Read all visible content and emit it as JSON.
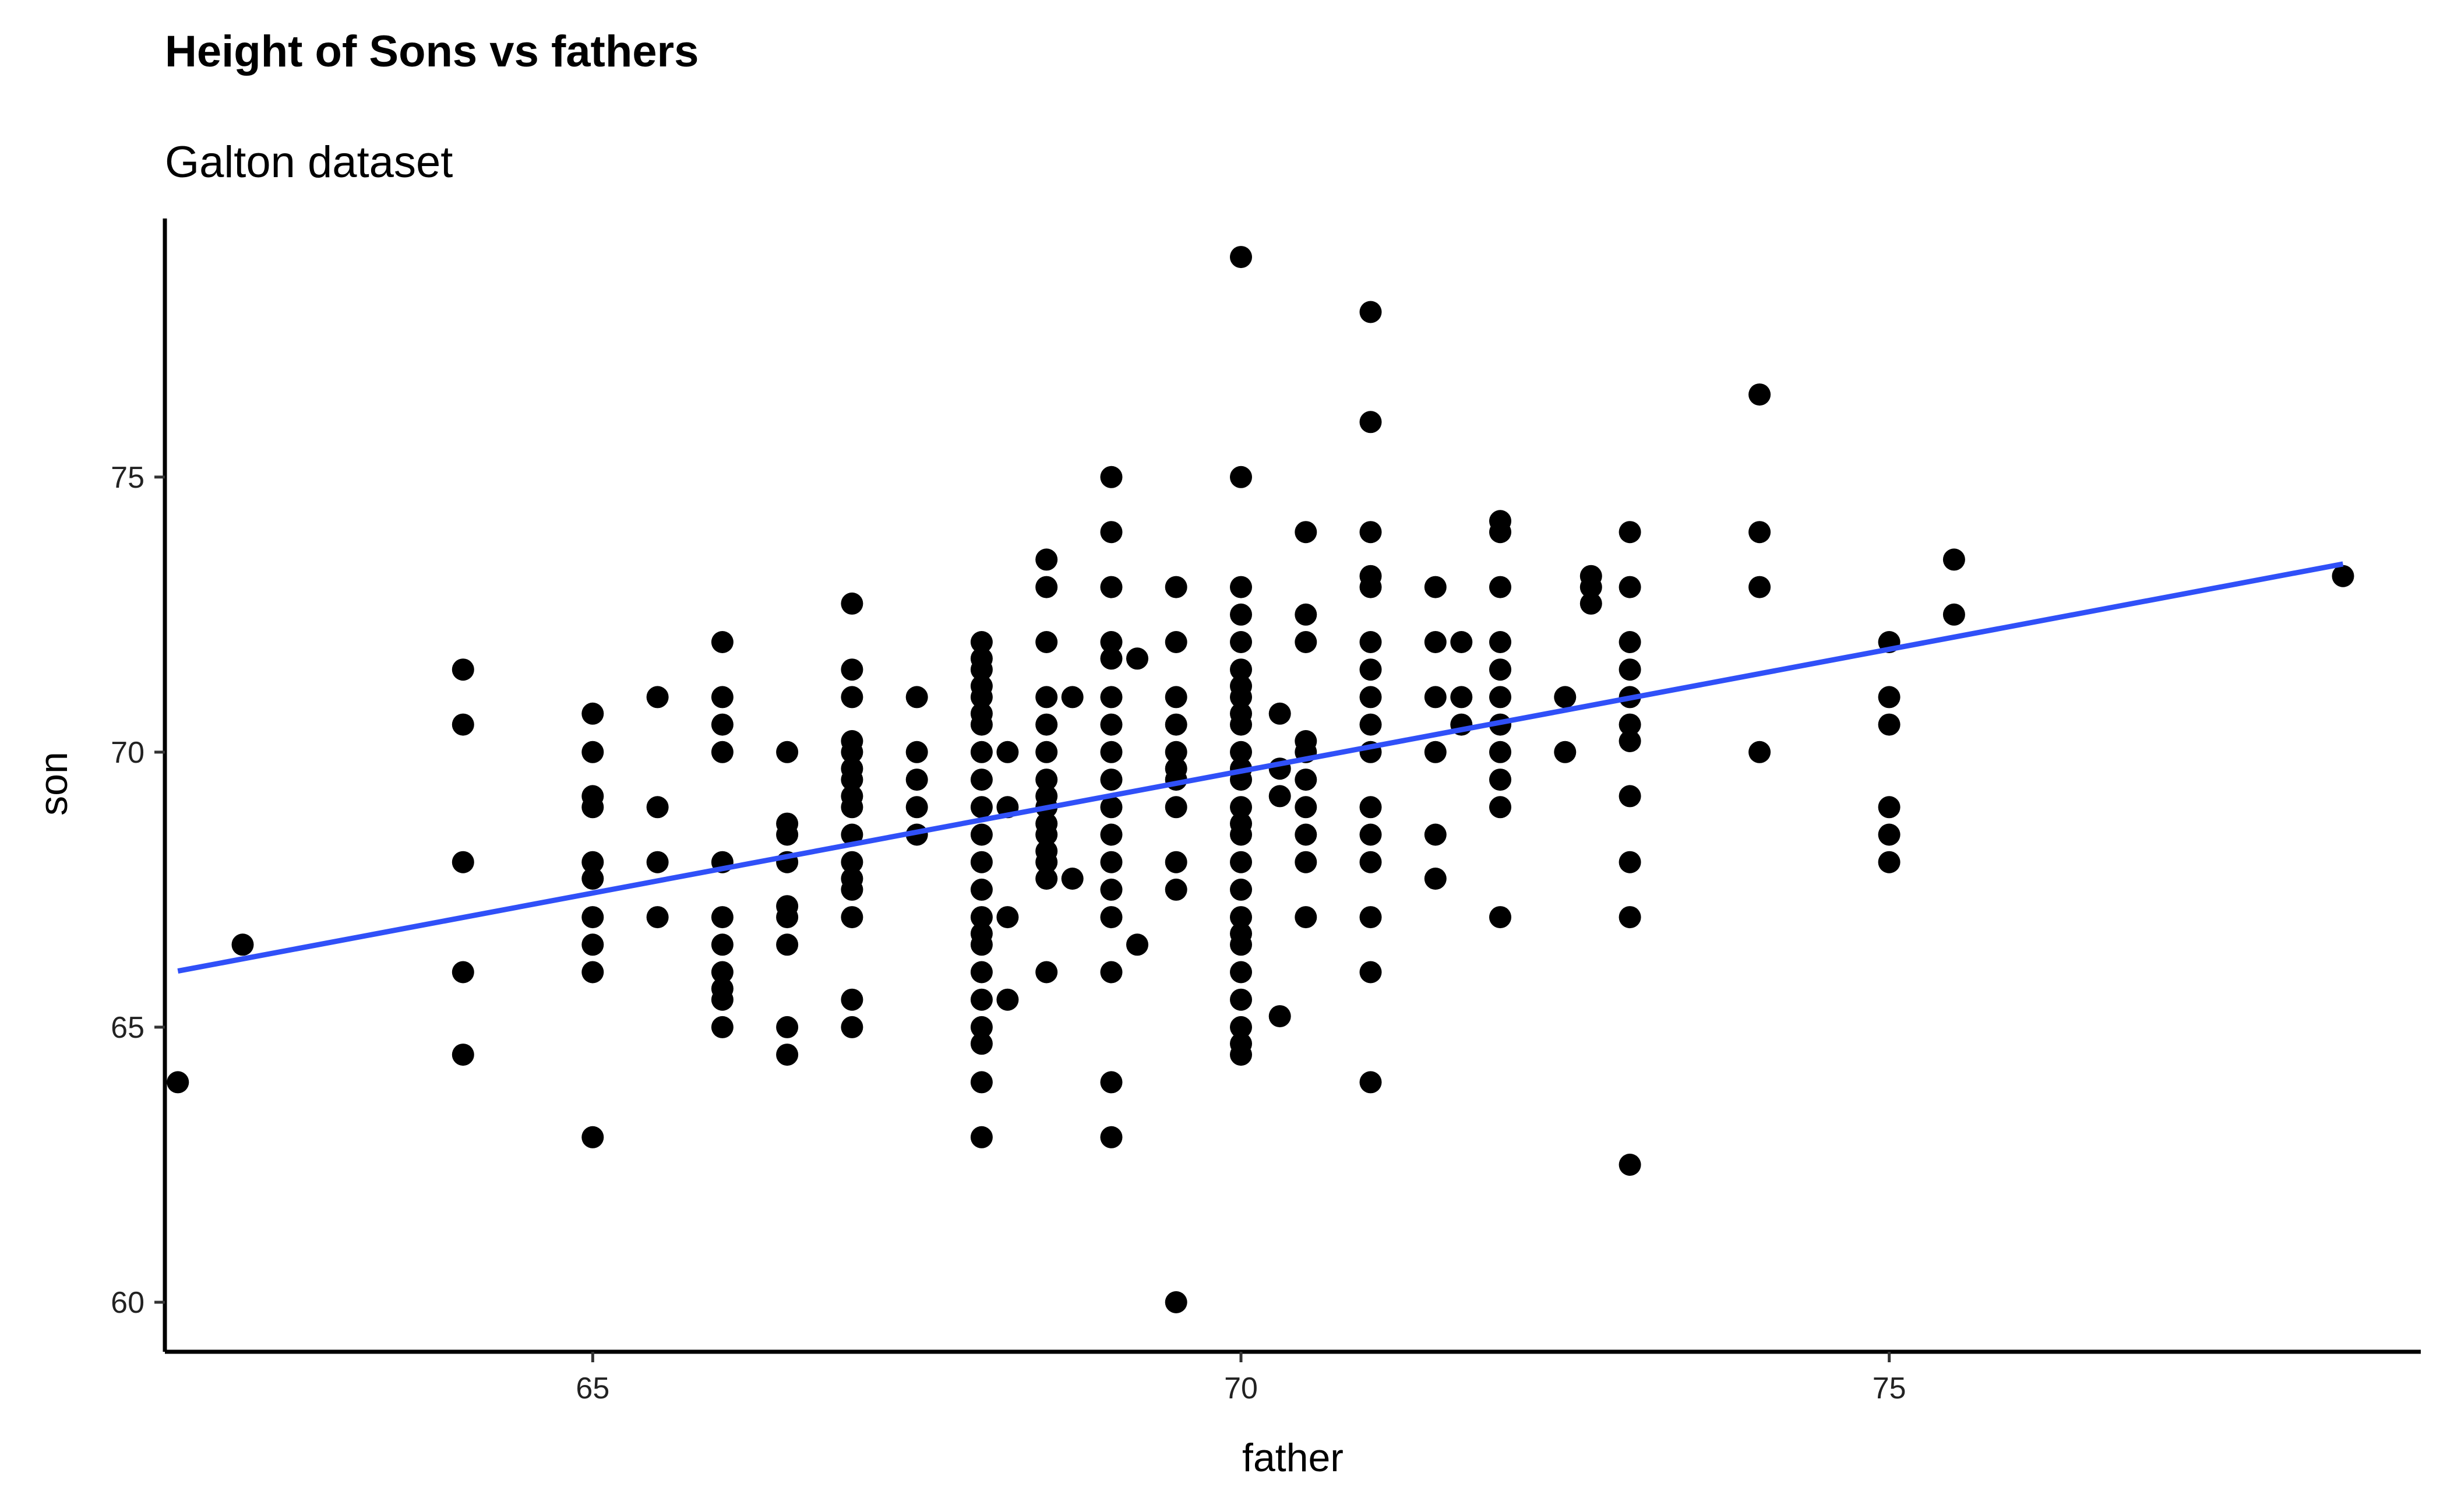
{
  "chart_data": {
    "type": "scatter",
    "title": "Height of Sons vs fathers",
    "subtitle": "Galton dataset",
    "xlabel": "father",
    "ylabel": "son",
    "xlim": [
      61.7,
      79.1
    ],
    "ylim": [
      59.1,
      79.7
    ],
    "x_ticks": [
      65,
      70,
      75
    ],
    "y_ticks": [
      60,
      65,
      70,
      75
    ],
    "grid": false,
    "colors": {
      "points": "#000000",
      "line": "#3050f8",
      "axis": "#000000"
    },
    "series": [
      {
        "type": "scatter",
        "points": [
          [
            61.8,
            64.0
          ],
          [
            62.3,
            66.5
          ],
          [
            64.0,
            71.5
          ],
          [
            64.0,
            70.5
          ],
          [
            64.0,
            68.0
          ],
          [
            64.0,
            66.0
          ],
          [
            64.0,
            64.5
          ],
          [
            65.0,
            70.7
          ],
          [
            65.0,
            70.0
          ],
          [
            65.0,
            69.2
          ],
          [
            65.0,
            69.0
          ],
          [
            65.0,
            68.0
          ],
          [
            65.0,
            67.7
          ],
          [
            65.0,
            67.0
          ],
          [
            65.0,
            66.5
          ],
          [
            65.0,
            66.0
          ],
          [
            65.0,
            63.0
          ],
          [
            65.5,
            71.0
          ],
          [
            65.5,
            69.0
          ],
          [
            65.5,
            68.0
          ],
          [
            65.5,
            67.0
          ],
          [
            66.0,
            72.0
          ],
          [
            66.0,
            71.0
          ],
          [
            66.0,
            70.5
          ],
          [
            66.0,
            70.0
          ],
          [
            66.0,
            68.0
          ],
          [
            66.0,
            67.0
          ],
          [
            66.0,
            66.5
          ],
          [
            66.0,
            66.0
          ],
          [
            66.0,
            65.7
          ],
          [
            66.0,
            65.5
          ],
          [
            66.0,
            65.0
          ],
          [
            66.5,
            70.0
          ],
          [
            66.5,
            68.7
          ],
          [
            66.5,
            68.5
          ],
          [
            66.5,
            68.0
          ],
          [
            66.5,
            67.2
          ],
          [
            66.5,
            67.0
          ],
          [
            66.5,
            66.5
          ],
          [
            66.5,
            65.0
          ],
          [
            66.5,
            64.5
          ],
          [
            67.0,
            72.7
          ],
          [
            67.0,
            71.5
          ],
          [
            67.0,
            71.0
          ],
          [
            67.0,
            70.2
          ],
          [
            67.0,
            70.0
          ],
          [
            67.0,
            69.7
          ],
          [
            67.0,
            69.5
          ],
          [
            67.0,
            69.2
          ],
          [
            67.0,
            69.0
          ],
          [
            67.0,
            68.5
          ],
          [
            67.0,
            68.0
          ],
          [
            67.0,
            67.7
          ],
          [
            67.0,
            67.5
          ],
          [
            67.0,
            67.0
          ],
          [
            67.0,
            65.5
          ],
          [
            67.0,
            65.0
          ],
          [
            67.5,
            71.0
          ],
          [
            67.5,
            70.0
          ],
          [
            67.5,
            69.5
          ],
          [
            67.5,
            69.0
          ],
          [
            67.5,
            68.5
          ],
          [
            68.0,
            72.0
          ],
          [
            68.0,
            71.7
          ],
          [
            68.0,
            71.5
          ],
          [
            68.0,
            71.2
          ],
          [
            68.0,
            71.0
          ],
          [
            68.0,
            70.7
          ],
          [
            68.0,
            70.5
          ],
          [
            68.0,
            70.0
          ],
          [
            68.0,
            69.5
          ],
          [
            68.0,
            69.0
          ],
          [
            68.0,
            68.5
          ],
          [
            68.0,
            68.0
          ],
          [
            68.0,
            67.5
          ],
          [
            68.0,
            67.0
          ],
          [
            68.0,
            66.7
          ],
          [
            68.0,
            66.5
          ],
          [
            68.0,
            66.0
          ],
          [
            68.0,
            65.5
          ],
          [
            68.0,
            65.0
          ],
          [
            68.0,
            64.7
          ],
          [
            68.0,
            64.0
          ],
          [
            68.0,
            63.0
          ],
          [
            68.2,
            70.0
          ],
          [
            68.2,
            69.0
          ],
          [
            68.2,
            67.0
          ],
          [
            68.2,
            65.5
          ],
          [
            68.5,
            73.5
          ],
          [
            68.5,
            73.0
          ],
          [
            68.5,
            72.0
          ],
          [
            68.5,
            71.0
          ],
          [
            68.5,
            70.5
          ],
          [
            68.5,
            70.0
          ],
          [
            68.5,
            69.5
          ],
          [
            68.5,
            69.2
          ],
          [
            68.5,
            69.0
          ],
          [
            68.5,
            68.7
          ],
          [
            68.5,
            68.5
          ],
          [
            68.5,
            68.2
          ],
          [
            68.5,
            68.0
          ],
          [
            68.5,
            67.7
          ],
          [
            68.5,
            66.0
          ],
          [
            68.7,
            71.0
          ],
          [
            68.7,
            67.7
          ],
          [
            69.0,
            75.0
          ],
          [
            69.0,
            74.0
          ],
          [
            69.0,
            73.0
          ],
          [
            69.0,
            72.0
          ],
          [
            69.0,
            71.7
          ],
          [
            69.0,
            71.0
          ],
          [
            69.0,
            70.5
          ],
          [
            69.0,
            70.0
          ],
          [
            69.0,
            69.5
          ],
          [
            69.0,
            69.0
          ],
          [
            69.0,
            68.5
          ],
          [
            69.0,
            68.0
          ],
          [
            69.0,
            67.5
          ],
          [
            69.0,
            67.0
          ],
          [
            69.0,
            66.0
          ],
          [
            69.0,
            64.0
          ],
          [
            69.0,
            63.0
          ],
          [
            69.2,
            71.7
          ],
          [
            69.2,
            66.5
          ],
          [
            69.5,
            73.0
          ],
          [
            69.5,
            72.0
          ],
          [
            69.5,
            71.0
          ],
          [
            69.5,
            70.5
          ],
          [
            69.5,
            70.0
          ],
          [
            69.5,
            69.7
          ],
          [
            69.5,
            69.5
          ],
          [
            69.5,
            69.0
          ],
          [
            69.5,
            68.0
          ],
          [
            69.5,
            67.5
          ],
          [
            69.5,
            60.0
          ],
          [
            70.0,
            79.0
          ],
          [
            70.0,
            75.0
          ],
          [
            70.0,
            73.0
          ],
          [
            70.0,
            72.5
          ],
          [
            70.0,
            72.0
          ],
          [
            70.0,
            71.5
          ],
          [
            70.0,
            71.2
          ],
          [
            70.0,
            71.0
          ],
          [
            70.0,
            70.7
          ],
          [
            70.0,
            70.5
          ],
          [
            70.0,
            70.0
          ],
          [
            70.0,
            69.7
          ],
          [
            70.0,
            69.5
          ],
          [
            70.0,
            69.0
          ],
          [
            70.0,
            68.7
          ],
          [
            70.0,
            68.5
          ],
          [
            70.0,
            68.0
          ],
          [
            70.0,
            67.5
          ],
          [
            70.0,
            67.0
          ],
          [
            70.0,
            66.7
          ],
          [
            70.0,
            66.5
          ],
          [
            70.0,
            66.0
          ],
          [
            70.0,
            65.5
          ],
          [
            70.0,
            65.0
          ],
          [
            70.0,
            64.7
          ],
          [
            70.0,
            64.5
          ],
          [
            70.3,
            70.7
          ],
          [
            70.3,
            69.7
          ],
          [
            70.3,
            69.2
          ],
          [
            70.3,
            65.2
          ],
          [
            70.5,
            74.0
          ],
          [
            70.5,
            72.5
          ],
          [
            70.5,
            72.0
          ],
          [
            70.5,
            70.2
          ],
          [
            70.5,
            70.0
          ],
          [
            70.5,
            69.5
          ],
          [
            70.5,
            69.0
          ],
          [
            70.5,
            68.5
          ],
          [
            70.5,
            68.0
          ],
          [
            70.5,
            67.0
          ],
          [
            71.0,
            78.0
          ],
          [
            71.0,
            76.0
          ],
          [
            71.0,
            74.0
          ],
          [
            71.0,
            73.2
          ],
          [
            71.0,
            73.0
          ],
          [
            71.0,
            72.0
          ],
          [
            71.0,
            71.5
          ],
          [
            71.0,
            71.0
          ],
          [
            71.0,
            70.5
          ],
          [
            71.0,
            70.0
          ],
          [
            71.0,
            69.0
          ],
          [
            71.0,
            68.5
          ],
          [
            71.0,
            68.0
          ],
          [
            71.0,
            67.0
          ],
          [
            71.0,
            66.0
          ],
          [
            71.0,
            64.0
          ],
          [
            71.5,
            73.0
          ],
          [
            71.5,
            72.0
          ],
          [
            71.5,
            71.0
          ],
          [
            71.5,
            70.0
          ],
          [
            71.5,
            68.5
          ],
          [
            71.5,
            67.7
          ],
          [
            71.7,
            72.0
          ],
          [
            71.7,
            71.0
          ],
          [
            71.7,
            70.5
          ],
          [
            72.0,
            74.2
          ],
          [
            72.0,
            74.0
          ],
          [
            72.0,
            73.0
          ],
          [
            72.0,
            72.0
          ],
          [
            72.0,
            71.5
          ],
          [
            72.0,
            71.0
          ],
          [
            72.0,
            70.5
          ],
          [
            72.0,
            70.0
          ],
          [
            72.0,
            69.5
          ],
          [
            72.0,
            69.0
          ],
          [
            72.0,
            67.0
          ],
          [
            72.5,
            71.0
          ],
          [
            72.5,
            70.0
          ],
          [
            72.7,
            73.2
          ],
          [
            72.7,
            73.0
          ],
          [
            72.7,
            72.7
          ],
          [
            73.0,
            74.0
          ],
          [
            73.0,
            73.0
          ],
          [
            73.0,
            72.0
          ],
          [
            73.0,
            71.5
          ],
          [
            73.0,
            71.0
          ],
          [
            73.0,
            70.5
          ],
          [
            73.0,
            70.2
          ],
          [
            73.0,
            69.2
          ],
          [
            73.0,
            68.0
          ],
          [
            73.0,
            67.0
          ],
          [
            73.0,
            62.5
          ],
          [
            74.0,
            76.5
          ],
          [
            74.0,
            74.0
          ],
          [
            74.0,
            73.0
          ],
          [
            74.0,
            70.0
          ],
          [
            75.0,
            72.0
          ],
          [
            75.0,
            71.0
          ],
          [
            75.0,
            70.5
          ],
          [
            75.0,
            69.0
          ],
          [
            75.0,
            68.5
          ],
          [
            75.0,
            68.0
          ],
          [
            75.5,
            73.5
          ],
          [
            75.5,
            72.5
          ],
          [
            78.5,
            73.2
          ]
        ]
      },
      {
        "type": "line",
        "x": [
          61.8,
          78.5
        ],
        "y": [
          66.02,
          73.42
        ]
      }
    ]
  }
}
